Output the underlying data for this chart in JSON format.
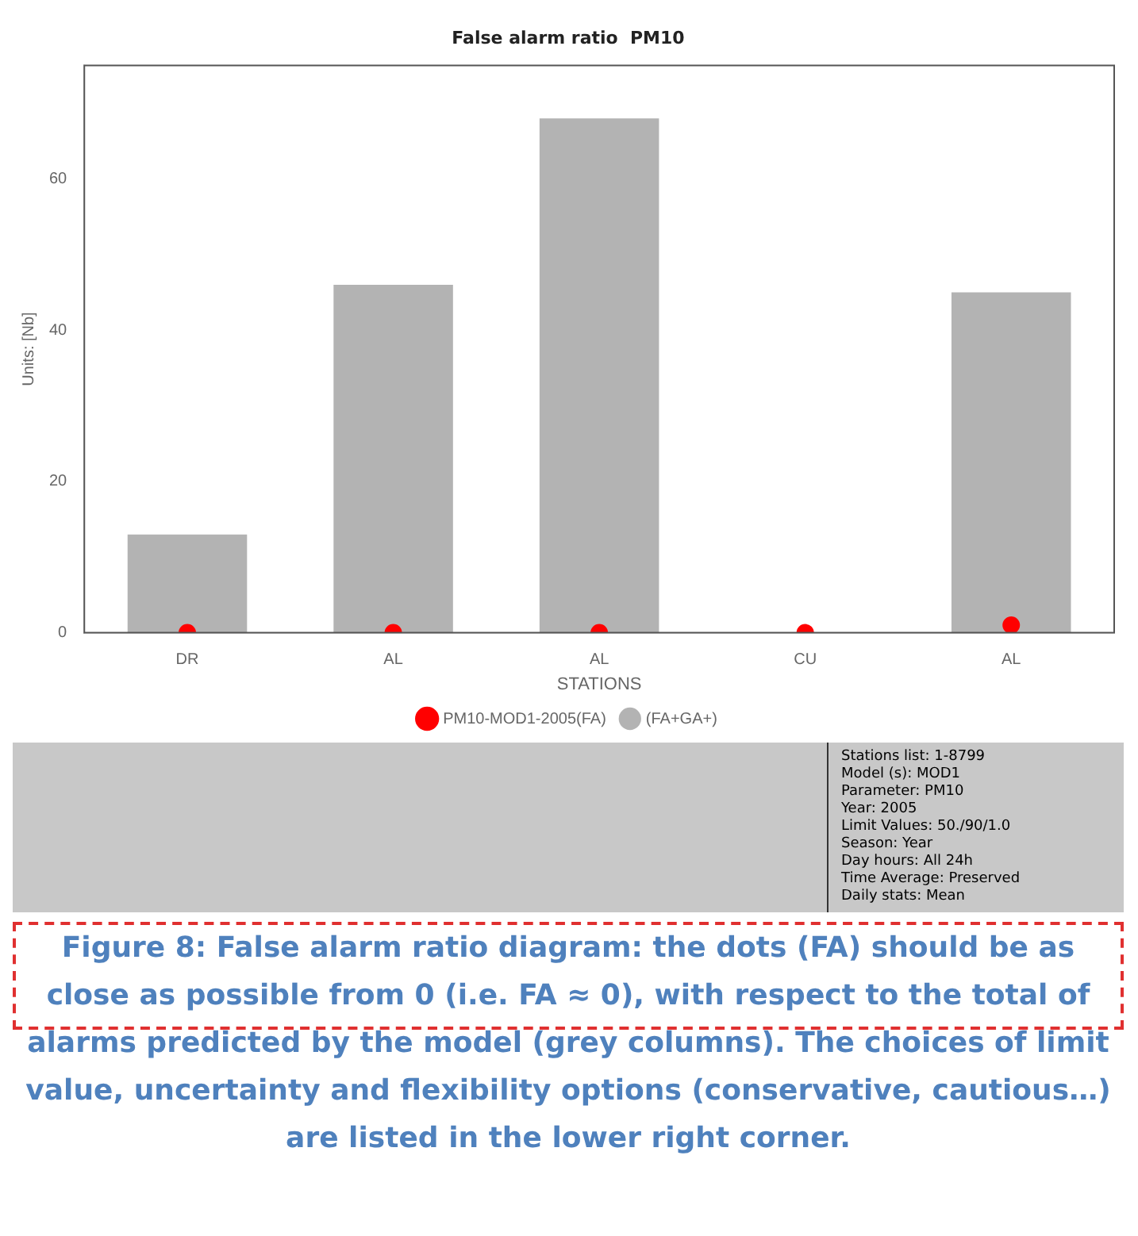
{
  "chart_data": {
    "type": "bar",
    "title": "False alarm ratio  PM10",
    "xlabel": "STATIONS",
    "ylabel": "Units: [Nb]",
    "categories": [
      "DR",
      "AL",
      "AL",
      "CU",
      "AL"
    ],
    "series": [
      {
        "name": "(FA+GA+)",
        "color": "#b3b3b3",
        "values": [
          13,
          46,
          68,
          0,
          45
        ]
      },
      {
        "name": "PM10-MOD1-2005(FA)",
        "type": "scatter",
        "color": "#ff0000",
        "values": [
          0,
          0,
          0,
          0,
          1
        ]
      }
    ],
    "ylim": [
      0,
      75
    ],
    "yticks": [
      0,
      20,
      40,
      60
    ],
    "grid": false,
    "legend": "bottom",
    "marker": "circle",
    "annotations": [
      "Stations list: 1-8799",
      "Model (s): MOD1",
      "Parameter: PM10",
      "Year: 2005",
      "Limit Values: 50./90/1.0",
      "Season: Year",
      "Day hours: All 24h",
      "Time Average: Preserved",
      "Daily stats: Mean",
      "Figure 8: False alarm ratio diagram: the dots (FA) should be as close as possible from 0 (i.e. FA ≈ 0), with respect to the total of alarms predicted by the model (grey columns). The choices of limit value, uncertainty and flexibility options (conservative, cautious…) are listed in the lower right corner."
    ]
  }
}
